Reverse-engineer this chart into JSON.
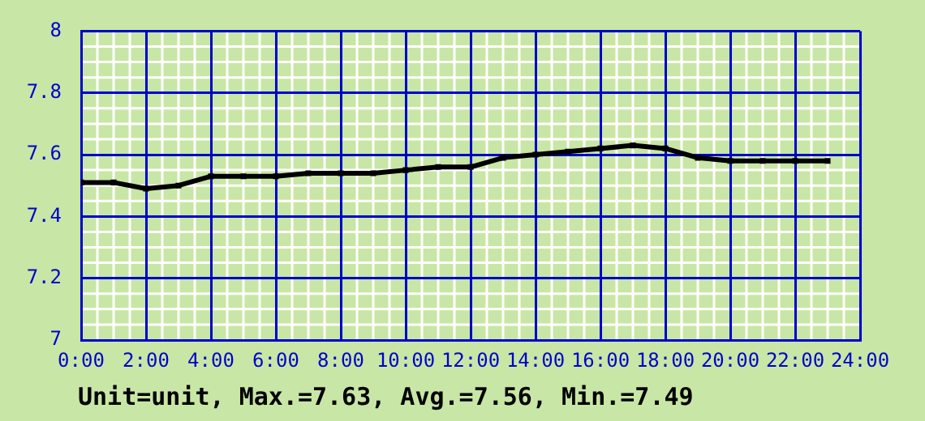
{
  "chart_data": {
    "type": "line",
    "x": [
      0,
      1,
      2,
      3,
      4,
      5,
      6,
      7,
      8,
      9,
      10,
      11,
      12,
      13,
      14,
      15,
      16,
      17,
      18,
      19,
      20,
      21,
      22,
      23
    ],
    "series": [
      {
        "color": "#000000",
        "values": [
          7.51,
          7.51,
          7.49,
          7.5,
          7.53,
          7.53,
          7.53,
          7.54,
          7.54,
          7.54,
          7.55,
          7.56,
          7.56,
          7.59,
          7.6,
          7.61,
          7.62,
          7.63,
          7.62,
          7.59,
          7.58,
          7.58,
          7.58,
          7.58
        ]
      }
    ],
    "xlim": [
      0,
      24
    ],
    "xticks": [
      {
        "value": 0,
        "label": "0:00"
      },
      {
        "value": 2,
        "label": "2:00"
      },
      {
        "value": 4,
        "label": "4:00"
      },
      {
        "value": 6,
        "label": "6:00"
      },
      {
        "value": 8,
        "label": "8:00"
      },
      {
        "value": 10,
        "label": "10:00"
      },
      {
        "value": 12,
        "label": "12:00"
      },
      {
        "value": 14,
        "label": "14:00"
      },
      {
        "value": 16,
        "label": "16:00"
      },
      {
        "value": 18,
        "label": "18:00"
      },
      {
        "value": 20,
        "label": "20:00"
      },
      {
        "value": 22,
        "label": "22:00"
      },
      {
        "value": 24,
        "label": "24:00"
      }
    ],
    "ylim": [
      7,
      8
    ],
    "yticks": [
      7,
      7.2,
      7.4,
      7.6,
      7.8,
      8
    ],
    "grid": true,
    "marker": "square",
    "line_style": "solid",
    "legend": false,
    "annotations": [
      "Unit=unit, Max.=7.63, Avg.=7.56, Min.=7.49"
    ]
  }
}
